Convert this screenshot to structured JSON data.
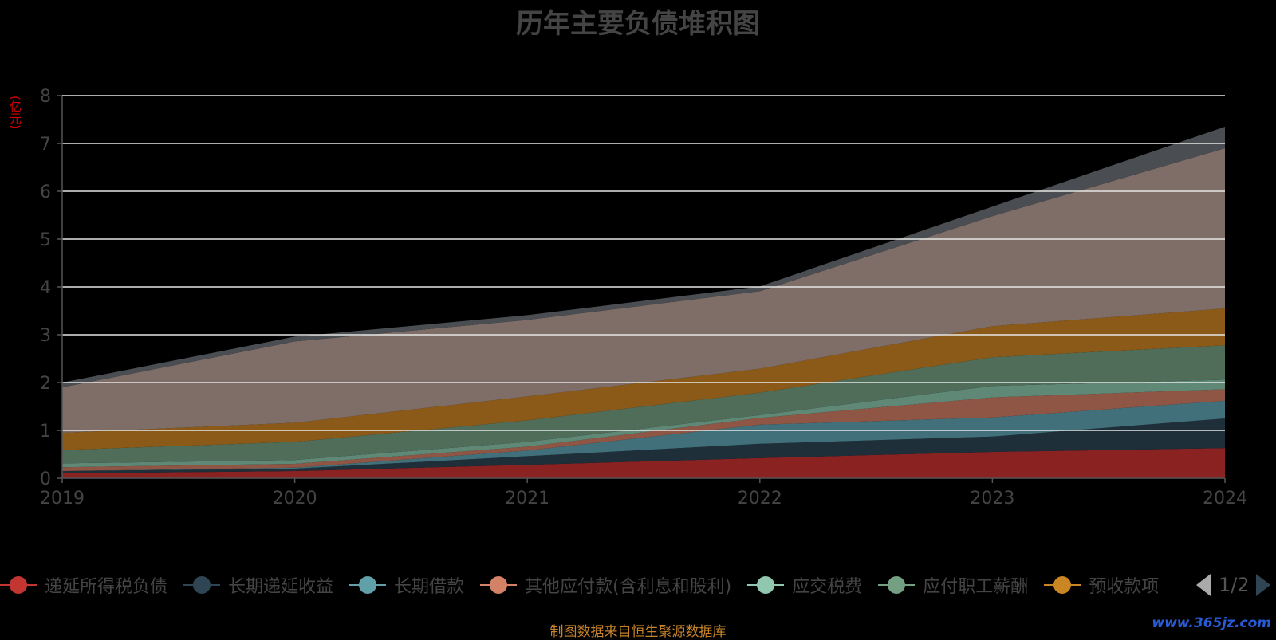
{
  "title": "历年主要负债堆积图",
  "unit_label": "(亿元)",
  "source_note": "制图数据来自恒生聚源数据库",
  "watermark": "www.365jz.com",
  "legend": {
    "page_indicator": "1/2",
    "items": [
      {
        "name": "递延所得税负债",
        "color": "#c23531"
      },
      {
        "name": "长期递延收益",
        "color": "#2f4554"
      },
      {
        "name": "长期借款",
        "color": "#61a0a8"
      },
      {
        "name": "其他应付款(含利息和股利)",
        "color": "#d48265"
      },
      {
        "name": "应交税费",
        "color": "#91c7ae"
      },
      {
        "name": "应付职工薪酬",
        "color": "#749f83"
      },
      {
        "name": "预收款项",
        "color": "#ca8622"
      }
    ]
  },
  "chart_data": {
    "type": "area",
    "stacked": true,
    "title": "历年主要负债堆积图",
    "ylabel": "(亿元)",
    "x": [
      "2019",
      "2020",
      "2021",
      "2022",
      "2023",
      "2024"
    ],
    "ylim": [
      0,
      8
    ],
    "yticks": [
      0,
      1,
      2,
      3,
      4,
      5,
      6,
      7,
      8
    ],
    "grid": true,
    "legend_position": "bottom",
    "series": [
      {
        "name": "递延所得税负债",
        "color": "#8b2222",
        "values": [
          0.1,
          0.15,
          0.28,
          0.42,
          0.55,
          0.63
        ]
      },
      {
        "name": "长期递延收益",
        "color": "#1f2f3a",
        "values": [
          0.05,
          0.05,
          0.18,
          0.3,
          0.32,
          0.62
        ]
      },
      {
        "name": "长期借款",
        "color": "#41707a",
        "values": [
          0.0,
          0.02,
          0.12,
          0.4,
          0.4,
          0.37
        ]
      },
      {
        "name": "其他应付款(含利息和股利)",
        "color": "#8f5645",
        "values": [
          0.08,
          0.08,
          0.08,
          0.14,
          0.42,
          0.24
        ]
      },
      {
        "name": "应交税费",
        "color": "#5f8877",
        "values": [
          0.08,
          0.08,
          0.1,
          0.06,
          0.24,
          0.2
        ]
      },
      {
        "name": "应付职工薪酬",
        "color": "#506d5a",
        "values": [
          0.28,
          0.38,
          0.45,
          0.47,
          0.6,
          0.72
        ]
      },
      {
        "name": "预收款项",
        "color": "#8b5a18",
        "values": [
          0.36,
          0.4,
          0.5,
          0.5,
          0.65,
          0.77
        ]
      },
      {
        "color": "#7f6e68",
        "values": [
          0.95,
          1.7,
          1.6,
          1.62,
          2.3,
          3.35
        ]
      },
      {
        "color": "#4a4d51",
        "values": [
          0.1,
          0.1,
          0.1,
          0.1,
          0.2,
          0.45
        ]
      }
    ]
  }
}
